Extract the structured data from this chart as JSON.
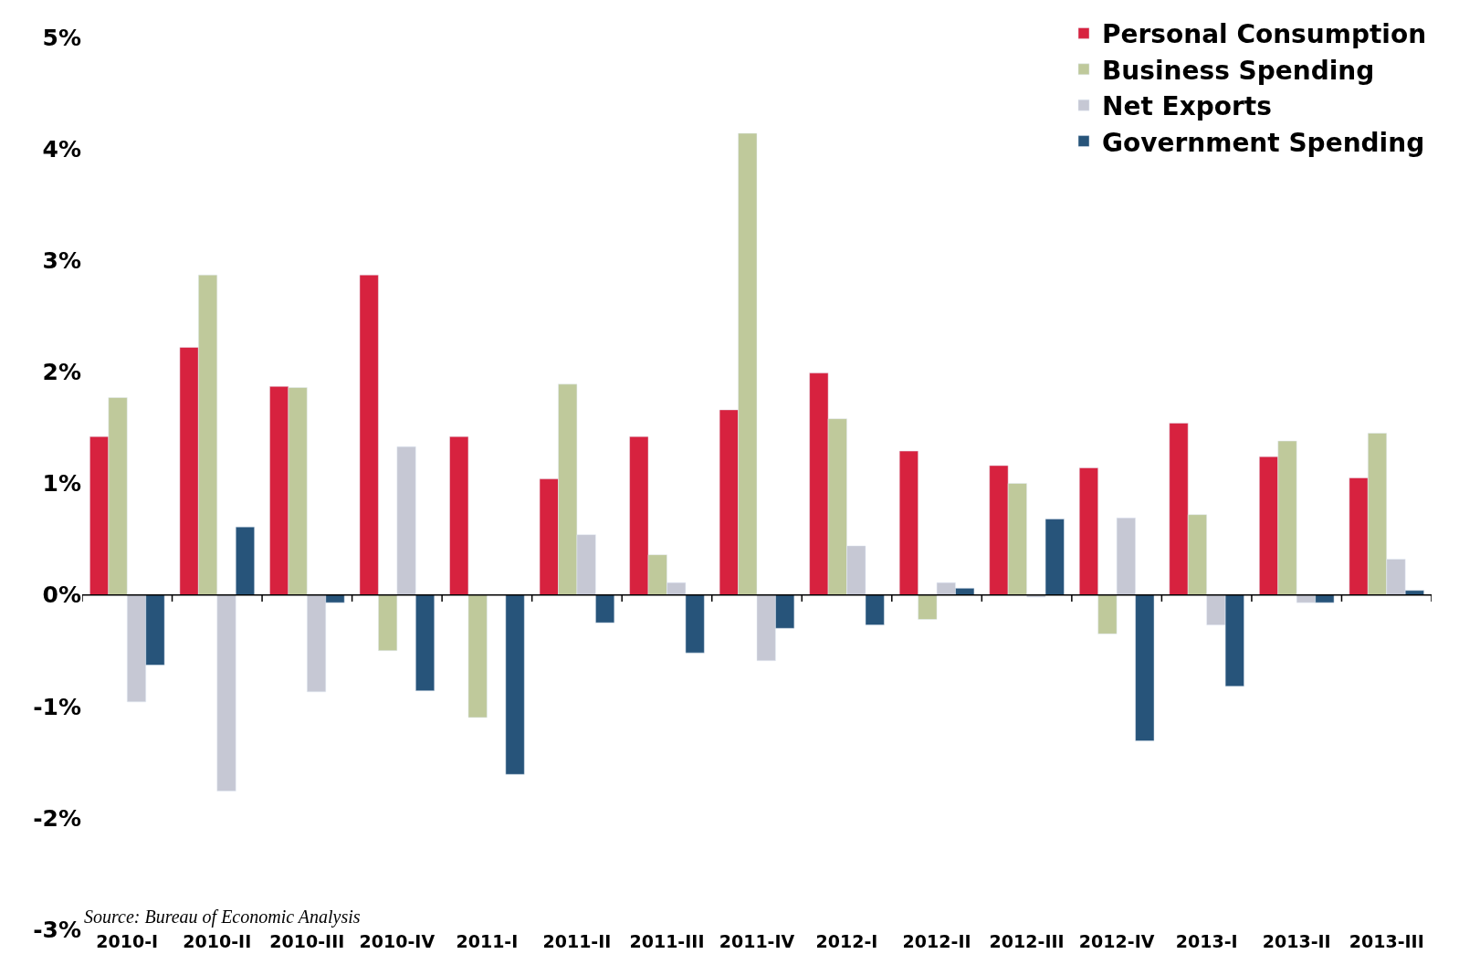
{
  "chart_data": {
    "type": "bar",
    "categories": [
      "2010-I",
      "2010-II",
      "2010-III",
      "2010-IV",
      "2011-I",
      "2011-II",
      "2011-III",
      "2011-IV",
      "2012-I",
      "2012-II",
      "2012-III",
      "2012-IV",
      "2013-I",
      "2013-II",
      "2013-III"
    ],
    "series": [
      {
        "name": "Personal Consumption",
        "color": "#d7223f",
        "values": [
          1.42,
          2.22,
          1.87,
          2.87,
          1.42,
          1.04,
          1.42,
          1.66,
          1.99,
          1.29,
          1.16,
          1.14,
          1.54,
          1.24,
          1.05
        ]
      },
      {
        "name": "Business Spending",
        "color": "#bfc99b",
        "values": [
          1.77,
          2.87,
          1.86,
          -0.5,
          -1.1,
          1.89,
          0.36,
          4.14,
          1.58,
          -0.22,
          1.0,
          -0.35,
          0.72,
          1.38,
          1.45
        ]
      },
      {
        "name": "Net Exports",
        "color": "#c6c8d4",
        "values": [
          -0.96,
          -1.76,
          -0.87,
          1.33,
          null,
          0.54,
          0.11,
          -0.59,
          0.44,
          0.11,
          -0.02,
          0.69,
          -0.27,
          -0.07,
          0.32
        ]
      },
      {
        "name": "Government Spending",
        "color": "#27547a",
        "values": [
          -0.63,
          0.61,
          -0.07,
          -0.86,
          -1.61,
          -0.25,
          -0.52,
          -0.3,
          -0.27,
          0.06,
          0.68,
          -1.31,
          -0.82,
          -0.07,
          0.04
        ]
      }
    ],
    "ylim": [
      -3,
      5
    ],
    "yticks": [
      {
        "value": -3,
        "label": "-3%"
      },
      {
        "value": -2,
        "label": "-2%"
      },
      {
        "value": -1,
        "label": "-1%"
      },
      {
        "value": 0,
        "label": "0%"
      },
      {
        "value": 1,
        "label": "1%"
      },
      {
        "value": 2,
        "label": "2%"
      },
      {
        "value": 3,
        "label": "3%"
      },
      {
        "value": 4,
        "label": "4%"
      },
      {
        "value": 5,
        "label": "5%"
      }
    ],
    "ref_lines": [
      {
        "axis": "y",
        "value": 0,
        "color": "#000000"
      }
    ],
    "legend": "top right",
    "annotations": [
      "Source: Bureau of Economic Analysis"
    ]
  }
}
